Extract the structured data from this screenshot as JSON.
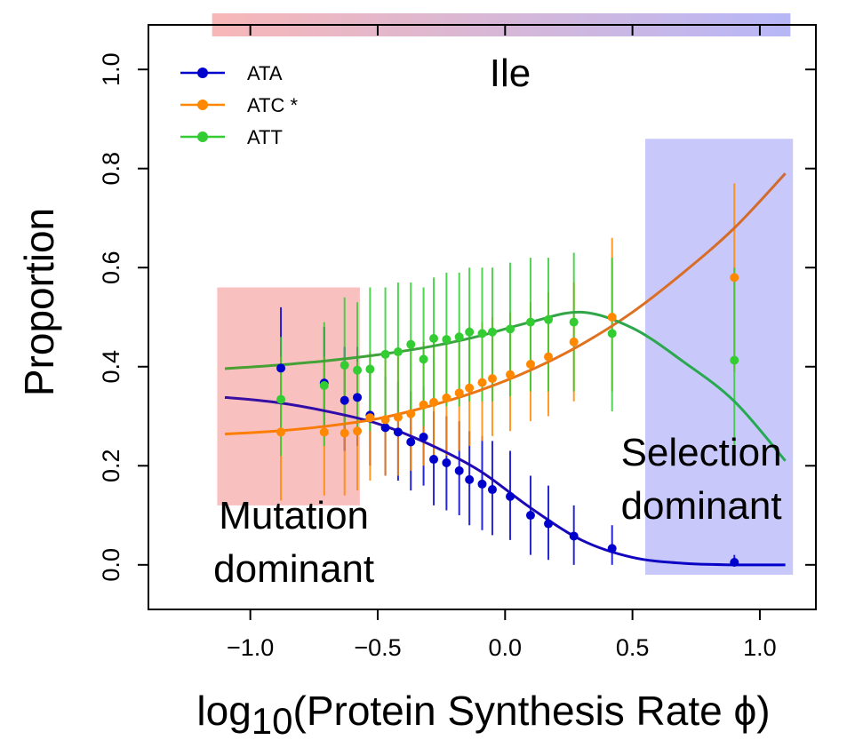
{
  "chart_data": {
    "type": "line",
    "title": "Ile",
    "xlabel_prefix": "log",
    "xlabel_sub": "10",
    "xlabel_rest": "(Protein Synthesis Rate ϕ)",
    "ylabel": "Proportion",
    "xlim": [
      -1.4,
      1.22
    ],
    "ylim": [
      -0.09,
      1.09
    ],
    "xticks": [
      -1.0,
      -0.5,
      0.0,
      0.5,
      1.0
    ],
    "xtick_labels": [
      "−1.0",
      "−0.5",
      "0.0",
      "0.5",
      "1.0"
    ],
    "yticks": [
      0.0,
      0.2,
      0.4,
      0.6,
      0.8,
      1.0
    ],
    "ytick_labels": [
      "0.0",
      "0.2",
      "0.4",
      "0.6",
      "0.8",
      "1.0"
    ],
    "legend_position": "top-left",
    "gradient_bar": {
      "x_range": [
        -1.15,
        1.12
      ],
      "color_start": "#f7b7b7",
      "color_end": "#b7b7f7"
    },
    "regions": [
      {
        "name": "mutation",
        "label_lines": [
          "Mutation",
          "dominant"
        ],
        "x_range": [
          -1.13,
          -0.57
        ],
        "y_range": [
          0.12,
          0.56
        ],
        "color": "#f9c0c0"
      },
      {
        "name": "selection",
        "label_lines": [
          "Selection",
          "dominant"
        ],
        "x_range": [
          0.55,
          1.13
        ],
        "y_range": [
          -0.02,
          0.86
        ],
        "color": "#c8c8fa"
      }
    ],
    "series": [
      {
        "name": "ATA",
        "color": "#0000cc",
        "curve_color_left": "#3a10a0",
        "curve_color_right": "#0000cc",
        "curve": {
          "x": [
            -1.1,
            -0.9,
            -0.7,
            -0.5,
            -0.3,
            -0.1,
            0.1,
            0.3,
            0.5,
            0.7,
            0.9,
            1.1
          ],
          "y": [
            0.338,
            0.328,
            0.31,
            0.285,
            0.244,
            0.19,
            0.115,
            0.05,
            0.015,
            0.003,
            0.0,
            0.0
          ]
        },
        "points": {
          "x": [
            -0.88,
            -0.71,
            -0.63,
            -0.58,
            -0.53,
            -0.47,
            -0.42,
            -0.37,
            -0.32,
            -0.28,
            -0.23,
            -0.18,
            -0.14,
            -0.09,
            -0.05,
            0.02,
            0.1,
            0.17,
            0.27,
            0.42,
            0.9
          ],
          "y": [
            0.397,
            0.367,
            0.332,
            0.338,
            0.302,
            0.277,
            0.268,
            0.248,
            0.258,
            0.213,
            0.206,
            0.19,
            0.172,
            0.163,
            0.152,
            0.138,
            0.1,
            0.083,
            0.058,
            0.033,
            0.005
          ],
          "lo": [
            0.28,
            0.26,
            0.23,
            0.24,
            0.2,
            0.18,
            0.17,
            0.15,
            0.16,
            0.12,
            0.11,
            0.1,
            0.08,
            0.07,
            0.06,
            0.05,
            0.02,
            0.01,
            0.0,
            0.0,
            0.0
          ],
          "hi": [
            0.52,
            0.48,
            0.44,
            0.44,
            0.4,
            0.38,
            0.37,
            0.35,
            0.36,
            0.31,
            0.3,
            0.29,
            0.27,
            0.26,
            0.25,
            0.23,
            0.18,
            0.16,
            0.12,
            0.08,
            0.02
          ]
        }
      },
      {
        "name": "ATC *",
        "color": "#ff8800",
        "curve_color_left": "#ff7f00",
        "curve_color_right": "#d06a30",
        "curve": {
          "x": [
            -1.1,
            -0.9,
            -0.7,
            -0.5,
            -0.3,
            -0.1,
            0.1,
            0.3,
            0.5,
            0.7,
            0.9,
            1.1
          ],
          "y": [
            0.264,
            0.27,
            0.28,
            0.295,
            0.32,
            0.352,
            0.393,
            0.445,
            0.51,
            0.59,
            0.68,
            0.79
          ]
        },
        "points": {
          "x": [
            -0.88,
            -0.71,
            -0.63,
            -0.58,
            -0.53,
            -0.47,
            -0.42,
            -0.37,
            -0.32,
            -0.28,
            -0.23,
            -0.18,
            -0.14,
            -0.09,
            -0.05,
            0.02,
            0.1,
            0.17,
            0.27,
            0.42,
            0.9
          ],
          "y": [
            0.268,
            0.268,
            0.266,
            0.27,
            0.297,
            0.293,
            0.298,
            0.305,
            0.323,
            0.328,
            0.337,
            0.347,
            0.357,
            0.368,
            0.376,
            0.384,
            0.405,
            0.42,
            0.45,
            0.5,
            0.58
          ],
          "lo": [
            0.13,
            0.14,
            0.14,
            0.15,
            0.17,
            0.18,
            0.18,
            0.19,
            0.2,
            0.21,
            0.22,
            0.23,
            0.24,
            0.25,
            0.26,
            0.27,
            0.29,
            0.3,
            0.33,
            0.35,
            0.39
          ],
          "hi": [
            0.42,
            0.42,
            0.41,
            0.41,
            0.43,
            0.42,
            0.42,
            0.43,
            0.45,
            0.45,
            0.46,
            0.47,
            0.48,
            0.49,
            0.5,
            0.51,
            0.53,
            0.55,
            0.57,
            0.66,
            0.77
          ]
        }
      },
      {
        "name": "ATT",
        "color": "#33cc33",
        "curve_color_left": "#4aa030",
        "curve_color_right": "#22aa55",
        "curve": {
          "x": [
            -1.1,
            -0.9,
            -0.7,
            -0.5,
            -0.3,
            -0.1,
            0.1,
            0.3,
            0.5,
            0.7,
            0.9,
            1.1
          ],
          "y": [
            0.396,
            0.403,
            0.412,
            0.424,
            0.44,
            0.462,
            0.49,
            0.51,
            0.478,
            0.41,
            0.33,
            0.21
          ]
        },
        "points": {
          "x": [
            -0.88,
            -0.71,
            -0.63,
            -0.58,
            -0.53,
            -0.47,
            -0.42,
            -0.37,
            -0.32,
            -0.28,
            -0.23,
            -0.18,
            -0.14,
            -0.09,
            -0.05,
            0.02,
            0.1,
            0.17,
            0.27,
            0.42,
            0.9
          ],
          "y": [
            0.334,
            0.362,
            0.403,
            0.393,
            0.395,
            0.425,
            0.43,
            0.445,
            0.415,
            0.457,
            0.455,
            0.46,
            0.47,
            0.467,
            0.47,
            0.476,
            0.49,
            0.495,
            0.49,
            0.467,
            0.413
          ],
          "lo": [
            0.22,
            0.24,
            0.28,
            0.27,
            0.27,
            0.3,
            0.3,
            0.31,
            0.28,
            0.32,
            0.32,
            0.32,
            0.33,
            0.33,
            0.33,
            0.34,
            0.35,
            0.35,
            0.35,
            0.31,
            0.2
          ],
          "hi": [
            0.46,
            0.49,
            0.54,
            0.53,
            0.56,
            0.56,
            0.57,
            0.57,
            0.56,
            0.58,
            0.59,
            0.59,
            0.6,
            0.6,
            0.6,
            0.61,
            0.62,
            0.62,
            0.63,
            0.62,
            0.6
          ]
        }
      }
    ]
  }
}
